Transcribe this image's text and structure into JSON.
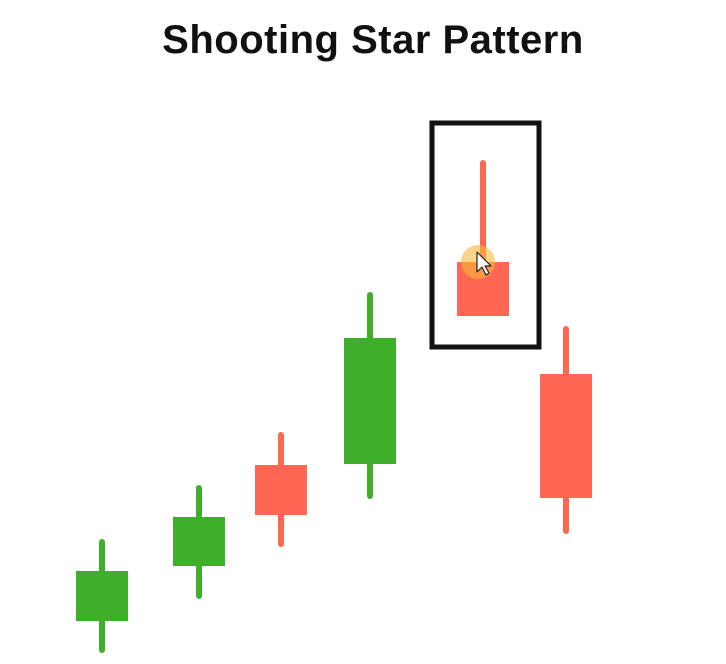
{
  "chart_data": {
    "type": "candlestick",
    "title": "Shooting Star Pattern",
    "xlabel": "",
    "ylabel": "",
    "grid": false,
    "colors": {
      "bullish": "#3fae29",
      "bearish": "#ff6653",
      "highlight_box": "#111111",
      "cursor_glow": "#f7b93a"
    },
    "candles": [
      {
        "open": 200,
        "close": 250,
        "high": 282,
        "low": 168
      },
      {
        "open": 255,
        "close": 304,
        "high": 336,
        "low": 222
      },
      {
        "open": 356,
        "close": 306,
        "high": 389,
        "low": 274
      },
      {
        "open": 357,
        "close": 483,
        "high": 529,
        "low": 322
      },
      {
        "open": 559,
        "close": 505,
        "high": 661,
        "low": 505
      },
      {
        "open": 447,
        "close": 323,
        "high": 495,
        "low": 287
      }
    ],
    "highlighted_index": 4,
    "y_range": [
      168,
      661
    ]
  }
}
